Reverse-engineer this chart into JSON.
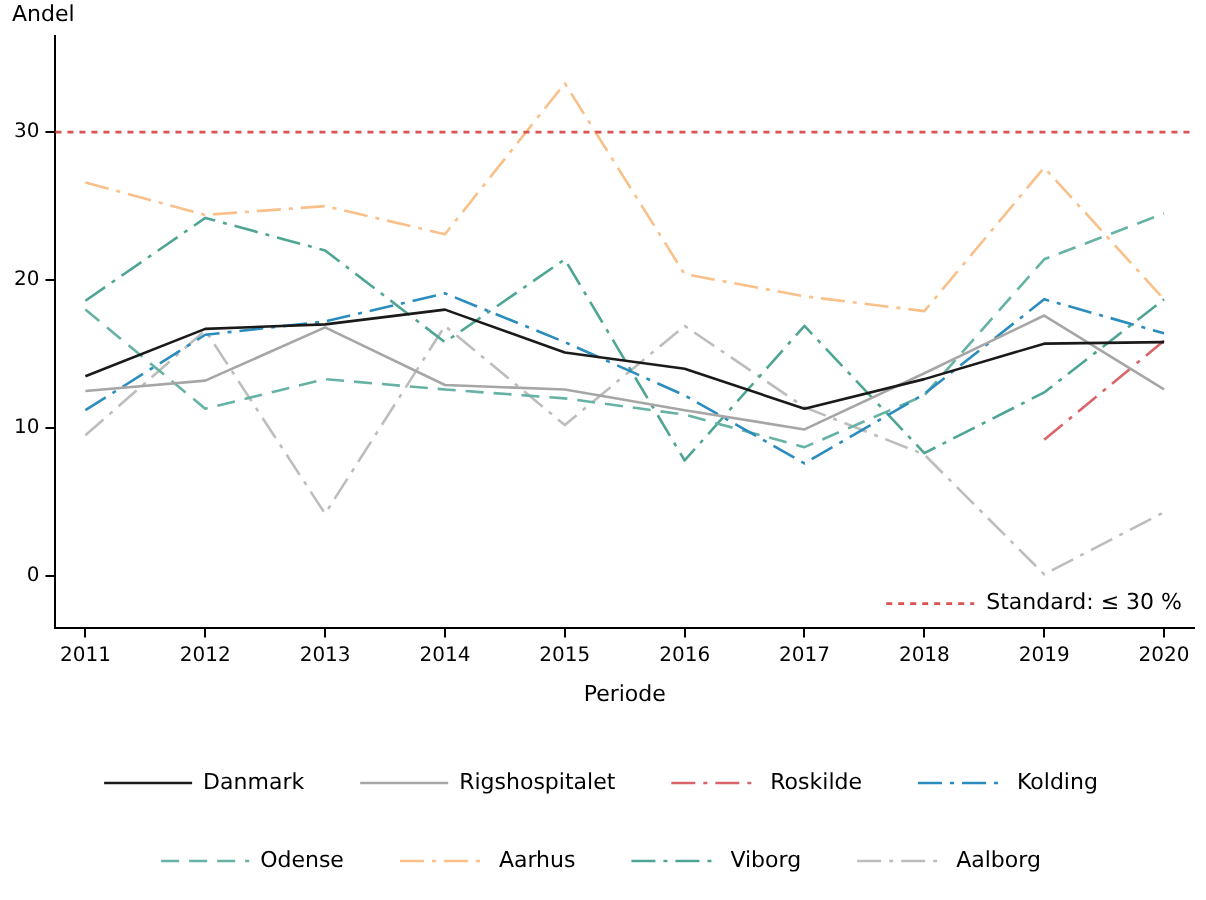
{
  "chart_data": {
    "type": "line",
    "xlabel": "Periode",
    "ylabel": "Andel",
    "x": [
      2011,
      2012,
      2013,
      2014,
      2015,
      2016,
      2017,
      2018,
      2019,
      2020
    ],
    "xlim": [
      2010.75,
      2020.25
    ],
    "xticks": [
      2011,
      2012,
      2013,
      2014,
      2015,
      2016,
      2017,
      2018,
      2019,
      2020
    ],
    "ylim": [
      -3.5,
      36.5
    ],
    "yticks": [
      0,
      10,
      20,
      30
    ],
    "grid": false,
    "legend": "bottom",
    "marker": "none",
    "series": [
      {
        "name": "Danmark",
        "color": "#1a1a1a",
        "line_style": "solid",
        "values": [
          13.5,
          16.7,
          17.0,
          18.0,
          15.1,
          14.0,
          11.3,
          13.3,
          15.7,
          15.8
        ]
      },
      {
        "name": "Rigshospitalet",
        "color": "#a6a6a6",
        "line_style": "solid",
        "values": [
          12.5,
          13.2,
          16.8,
          12.9,
          12.6,
          11.2,
          9.9,
          13.7,
          17.6,
          12.6
        ]
      },
      {
        "name": "Roskilde",
        "color": "#d9646a",
        "line_style": "dashdot",
        "values": [
          null,
          null,
          null,
          null,
          null,
          null,
          null,
          null,
          9.2,
          15.9
        ]
      },
      {
        "name": "Kolding",
        "color": "#2b8cbe",
        "line_style": "dashdot",
        "values": [
          11.2,
          16.3,
          17.2,
          19.1,
          15.8,
          12.2,
          7.6,
          12.3,
          18.7,
          16.4
        ]
      },
      {
        "name": "Odense",
        "color": "#66b2a4",
        "line_style": "dashed",
        "values": [
          18.0,
          11.3,
          13.3,
          12.6,
          12.0,
          10.9,
          8.7,
          12.2,
          21.4,
          24.5
        ]
      },
      {
        "name": "Aarhus",
        "color": "#f9c08a",
        "line_style": "dashdot",
        "values": [
          26.6,
          24.4,
          25.0,
          23.1,
          33.3,
          20.4,
          18.9,
          17.9,
          27.6,
          18.7
        ]
      },
      {
        "name": "Viborg",
        "color": "#4fa594",
        "line_style": "dashdot",
        "values": [
          18.6,
          24.2,
          22.0,
          15.8,
          21.4,
          7.8,
          16.9,
          8.3,
          12.4,
          18.7
        ]
      },
      {
        "name": "Aalborg",
        "color": "#bdbdbd",
        "line_style": "dashdot",
        "values": [
          9.5,
          16.6,
          4.2,
          16.9,
          10.2,
          16.9,
          11.4,
          8.2,
          0.1,
          4.3
        ]
      }
    ],
    "ref_lines": [
      {
        "axis": "y",
        "value": 30,
        "label": "Standard: ≤ 30 %",
        "color": "#d9534f",
        "line_style": "dotted"
      }
    ]
  }
}
